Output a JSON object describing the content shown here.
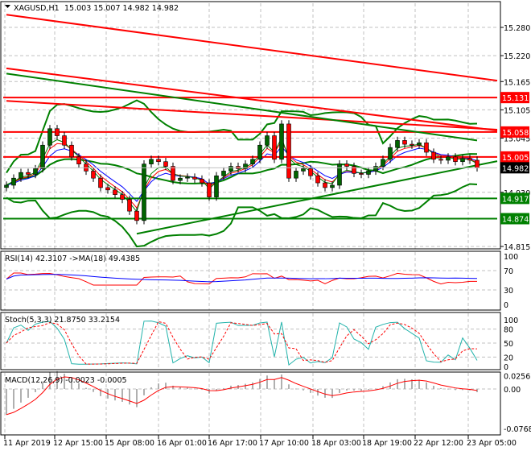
{
  "header": {
    "symbol": "XAGUSD,H1",
    "ohlc": "15.003 15.007 14.982 14.982"
  },
  "colors": {
    "bull": "#006400",
    "bear": "#ff0000",
    "support": "#008000",
    "resistance": "#ff0000",
    "grid": "#c0c0c0",
    "current": "#000000"
  },
  "chart_data": [
    {
      "type": "candlestick",
      "title": "XAGUSD,H1",
      "x_tick_labels": [
        "11 Apr 2019",
        "12 Apr 15:00",
        "15 Apr 08:00",
        "16 Apr 01:00",
        "16 Apr 17:00",
        "17 Apr 10:00",
        "18 Apr 03:00",
        "18 Apr 19:00",
        "22 Apr 12:00",
        "23 Apr 05:00"
      ],
      "y_tick_labels": [
        "15.280",
        "15.220",
        "15.165",
        "15.105",
        "15.045",
        "14.930",
        "14.815"
      ],
      "ylim": [
        14.805,
        15.335
      ],
      "grid": true,
      "closes": [
        14.945,
        14.96,
        14.972,
        14.968,
        14.98,
        15.03,
        15.065,
        15.05,
        15.03,
        15.005,
        14.99,
        14.975,
        14.96,
        14.94,
        14.935,
        14.925,
        14.915,
        14.89,
        14.87,
        14.99,
        15.0,
        14.995,
        14.985,
        14.955,
        14.96,
        14.962,
        14.958,
        14.95,
        14.92,
        14.965,
        14.975,
        14.985,
        14.98,
        14.99,
        15.0,
        15.03,
        15.05,
        15.0,
        15.075,
        14.96,
        14.975,
        14.98,
        14.965,
        14.95,
        14.94,
        14.945,
        14.99,
        14.985,
        14.97,
        14.968,
        14.975,
        14.985,
        15.0,
        15.025,
        15.04,
        15.032,
        15.03,
        15.035,
        15.015,
        15.0,
        14.998,
        15.005,
        14.995,
        15.002,
        14.998,
        14.982
      ],
      "levels": [
        {
          "label": "15.131",
          "price": 15.131,
          "color": "#ff0000"
        },
        {
          "label": "15.058",
          "price": 15.058,
          "color": "#ff0000"
        },
        {
          "label": "15.005",
          "price": 15.005,
          "color": "#ff0000"
        },
        {
          "label": "14.917",
          "price": 14.917,
          "color": "#008000"
        },
        {
          "label": "14.874",
          "price": 14.874,
          "color": "#008000"
        }
      ],
      "current_price": {
        "label": "14.982",
        "price": 14.982
      },
      "trendlines": [
        {
          "color": "#ff0000",
          "from": [
            0,
            15.307
          ],
          "to": [
            72,
            15.167
          ]
        },
        {
          "color": "#ff0000",
          "from": [
            0,
            15.193
          ],
          "to": [
            68,
            15.061
          ]
        },
        {
          "color": "#ff0000",
          "from": [
            0,
            15.124
          ],
          "to": [
            68,
            15.063
          ]
        },
        {
          "color": "#008000",
          "from": [
            18,
            14.842
          ],
          "to": [
            72,
            14.996
          ]
        },
        {
          "color": "#008000",
          "from": [
            0,
            15.182
          ],
          "to": [
            65,
            15.04
          ]
        }
      ]
    },
    {
      "type": "line",
      "title": "RSI(14) 42.3107  ->MA(18) 49.4385",
      "y_tick_labels": [
        "100",
        "70",
        "30",
        "0"
      ],
      "ylim": [
        0,
        100
      ],
      "series": [
        {
          "name": "RSI(14)",
          "last": 42.3107
        },
        {
          "name": "MA(18)",
          "last": 49.4385
        }
      ]
    },
    {
      "type": "line",
      "title": "Stoch(5,3,3) 21.8750 33.2154",
      "y_tick_labels": [
        "100",
        "80",
        "50",
        "20",
        "0"
      ],
      "ylim": [
        0,
        100
      ],
      "series": [
        {
          "name": "%K",
          "last": 21.875
        },
        {
          "name": "%D",
          "last": 33.2154
        }
      ]
    },
    {
      "type": "bar",
      "title": "MACD(12,26,9) -0.0023 -0.0005",
      "y_tick_labels": [
        "0.0256",
        "0.00",
        "-0.0768"
      ],
      "ylim": [
        -0.0768,
        0.0256
      ],
      "series": [
        {
          "name": "MACD",
          "last": -0.0023
        },
        {
          "name": "Signal",
          "last": -0.0005
        }
      ]
    }
  ]
}
